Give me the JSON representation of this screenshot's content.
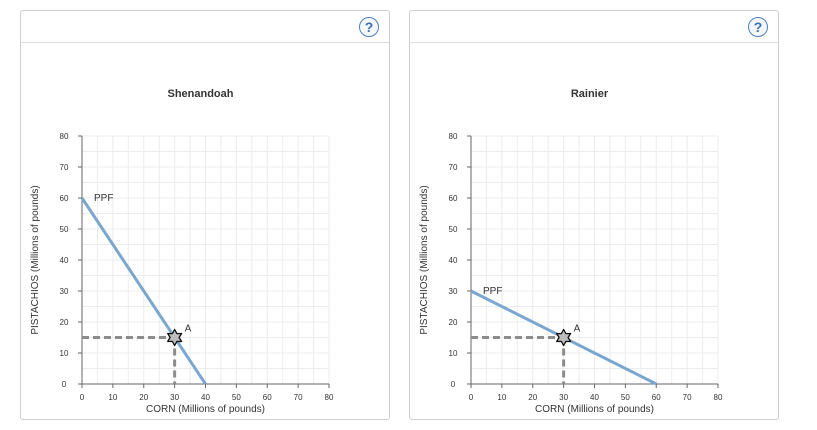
{
  "help_label": "?",
  "colors": {
    "ppf": "#7aa6cf",
    "dash": "#8c8c8c",
    "grid": "#ececec",
    "axis": "#666666",
    "text": "#333333"
  },
  "chart_data": [
    {
      "type": "line",
      "title": "Shenandoah",
      "xlabel": "CORN (Millions of pounds)",
      "ylabel": "PISTACHIOS (Millions of pounds)",
      "xlim": [
        0,
        80
      ],
      "ylim": [
        0,
        80
      ],
      "xticks": [
        0,
        10,
        20,
        30,
        40,
        50,
        60,
        70,
        80
      ],
      "yticks": [
        0,
        10,
        20,
        30,
        40,
        50,
        60,
        70,
        80
      ],
      "series": [
        {
          "name": "PPF",
          "x": [
            0,
            40
          ],
          "y": [
            60,
            0
          ]
        }
      ],
      "point": {
        "label": "A",
        "x": 30,
        "y": 15
      },
      "ppf_label": "PPF"
    },
    {
      "type": "line",
      "title": "Rainier",
      "xlabel": "CORN (Millions of pounds)",
      "ylabel": "PISTACHIOS (Millions of pounds)",
      "xlim": [
        0,
        80
      ],
      "ylim": [
        0,
        80
      ],
      "xticks": [
        0,
        10,
        20,
        30,
        40,
        50,
        60,
        70,
        80
      ],
      "yticks": [
        0,
        10,
        20,
        30,
        40,
        50,
        60,
        70,
        80
      ],
      "series": [
        {
          "name": "PPF",
          "x": [
            0,
            60
          ],
          "y": [
            30,
            0
          ]
        }
      ],
      "point": {
        "label": "A",
        "x": 30,
        "y": 15
      },
      "ppf_label": "PPF"
    }
  ]
}
